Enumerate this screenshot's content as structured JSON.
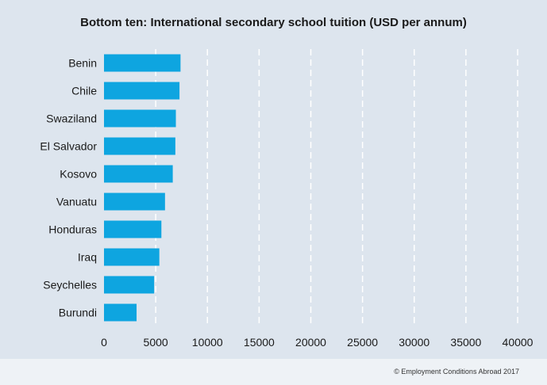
{
  "chart_data": {
    "type": "bar",
    "orientation": "horizontal",
    "title": "Bottom ten: International secondary school tuition (USD per annum)",
    "xlabel": "",
    "ylabel": "",
    "categories": [
      "Benin",
      "Chile",
      "Swaziland",
      "El Salvador",
      "Kosovo",
      "Vanuatu",
      "Honduras",
      "Iraq",
      "Seychelles",
      "Burundi"
    ],
    "values": [
      7400,
      7300,
      6950,
      6900,
      6650,
      5900,
      5550,
      5350,
      4850,
      3150
    ],
    "xlim": [
      0,
      40000
    ],
    "xticks": [
      0,
      5000,
      10000,
      15000,
      20000,
      25000,
      30000,
      35000,
      40000
    ],
    "xtick_labels": [
      "0",
      "5000",
      "10000",
      "15000",
      "20000",
      "25000",
      "30000",
      "35000",
      "40000"
    ],
    "grid": "vertical-dashed",
    "bar_color": "#0ea5e0",
    "grid_color": "#ffffff"
  },
  "footer": {
    "credit": "© Employment Conditions Abroad 2017"
  }
}
